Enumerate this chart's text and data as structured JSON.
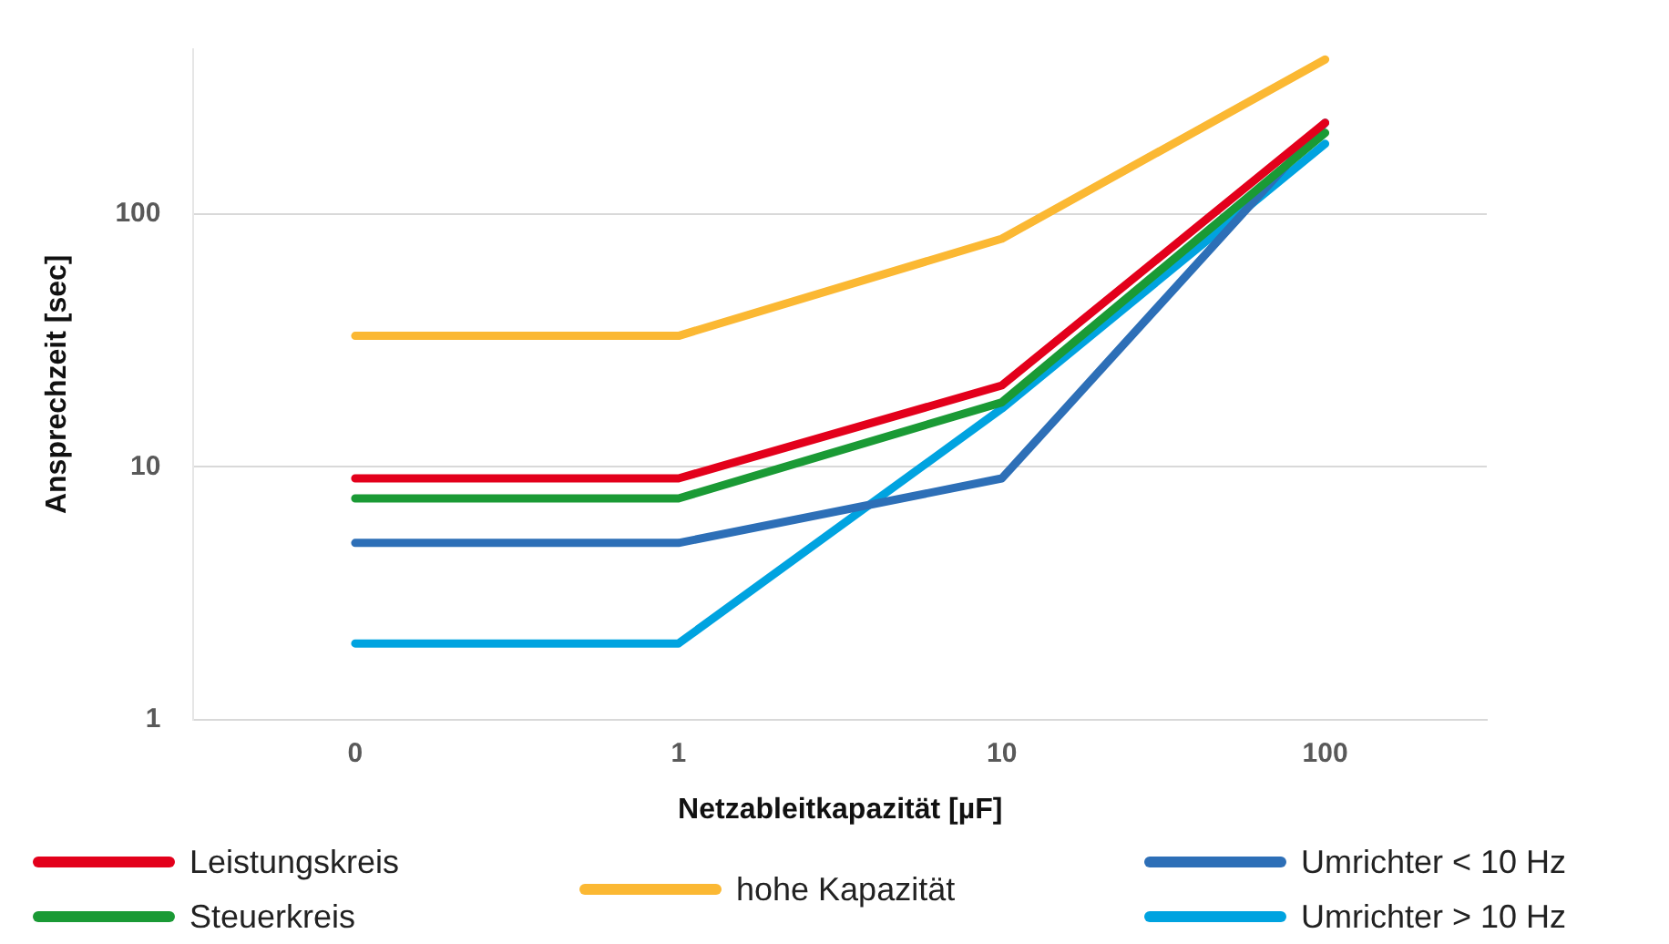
{
  "chart_data": {
    "type": "line",
    "xlabel": "Netzableitkapazität [µF]",
    "ylabel": "Ansprechzeit [sec]",
    "categories": [
      "0",
      "1",
      "10",
      "100"
    ],
    "ylim": [
      1,
      450
    ],
    "yticks": [
      1,
      10,
      100
    ],
    "log": "y",
    "grid": "y",
    "legend": "bottom",
    "marker": "none",
    "line_style": "solid",
    "series": [
      {
        "name": "Leistungskreis",
        "color": "#e3001b",
        "values": [
          9,
          9,
          21,
          230
        ]
      },
      {
        "name": "Steuerkreis",
        "color": "#1a9a35",
        "values": [
          7.5,
          7.5,
          18,
          210
        ]
      },
      {
        "name": "hohe Kapazität",
        "color": "#fbb833",
        "values": [
          33,
          33,
          80,
          410
        ]
      },
      {
        "name": "Umrichter < 10 Hz",
        "color": "#2d6fb7",
        "values": [
          5,
          5,
          9,
          230
        ]
      },
      {
        "name": "Umrichter > 10 Hz",
        "color": "#00a3e0",
        "values": [
          2,
          2,
          17,
          190
        ]
      }
    ]
  }
}
